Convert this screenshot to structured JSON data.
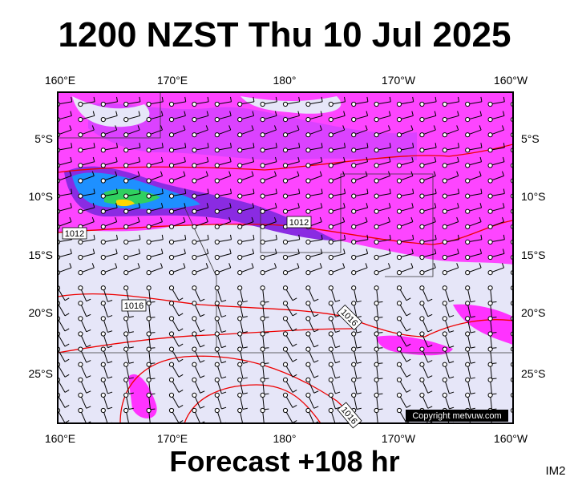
{
  "header": {
    "title": "1200 NZST Thu 10 Jul 2025"
  },
  "map": {
    "lon_labels": [
      "160°E",
      "170°E",
      "180°",
      "170°W",
      "160°W"
    ],
    "lat_labels": [
      "5°S",
      "10°S",
      "15°S",
      "20°S",
      "25°S"
    ],
    "contour_labels": [
      "1012",
      "1012",
      "1016",
      "1016",
      "1016"
    ],
    "copyright": "Copyright metvuw.com"
  },
  "footer": {
    "forecast": "Forecast +108 hr",
    "image_id": "IM2"
  }
}
